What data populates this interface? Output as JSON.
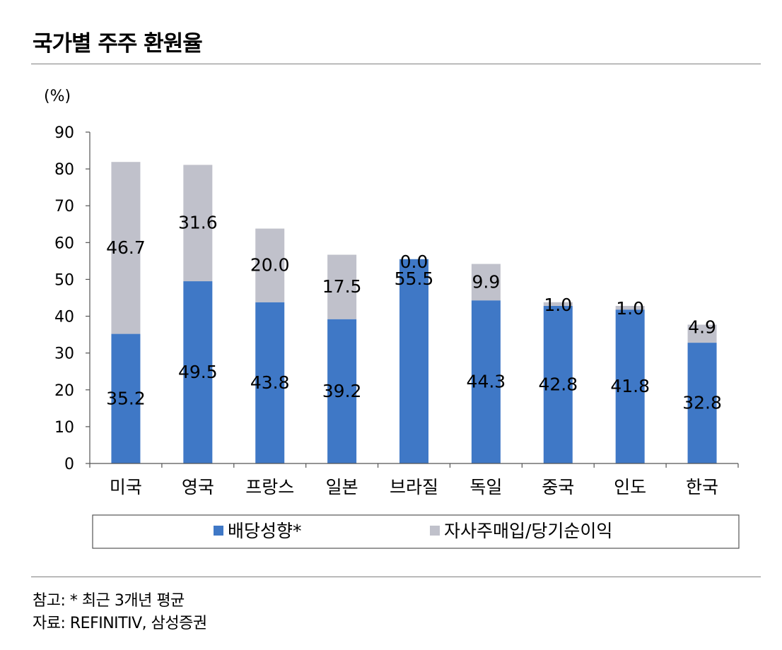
{
  "title": "국가별 주주 환원율",
  "notes": {
    "reference": "참고: * 최근 3개년 평균",
    "source": "자료: REFINITIV, 삼성증권"
  },
  "chart_data": {
    "type": "bar",
    "stacked": true,
    "title": "국가별 주주 환원율",
    "ylabel": "(%)",
    "xlabel": "",
    "ylim": [
      0,
      90
    ],
    "yticks": [
      0,
      10,
      20,
      30,
      40,
      50,
      60,
      70,
      80,
      90
    ],
    "grid": false,
    "legend_position": "bottom",
    "categories": [
      "미국",
      "영국",
      "프랑스",
      "일본",
      "브라질",
      "독일",
      "중국",
      "인도",
      "한국"
    ],
    "series": [
      {
        "name": "배당성향*",
        "color": "#3f78c6",
        "values": [
          35.2,
          49.5,
          43.8,
          39.2,
          55.5,
          44.3,
          42.8,
          41.8,
          32.8
        ],
        "labels": [
          "35.2",
          "49.5",
          "43.8",
          "39.2",
          "55.5",
          "44.3",
          "42.8",
          "41.8",
          "32.8"
        ]
      },
      {
        "name": "자사주매입/당기순이익",
        "color": "#c0c1cb",
        "values": [
          46.7,
          31.6,
          20.0,
          17.5,
          0.0,
          9.9,
          1.0,
          1.0,
          4.9
        ],
        "labels": [
          "46.7",
          "31.6",
          "20.0",
          "17.5",
          "0.0",
          "9.9",
          "1.0",
          "1.0",
          "4.9"
        ]
      }
    ]
  }
}
